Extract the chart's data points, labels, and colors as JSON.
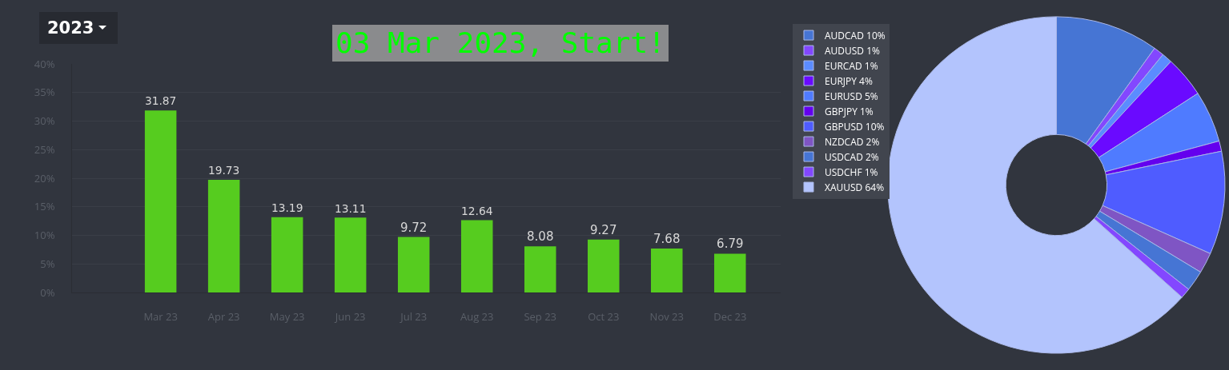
{
  "chart_data": [
    {
      "type": "bar",
      "title": "03 Mar 2023, Start!",
      "annotations": [
        "2023"
      ],
      "categories": [
        "Mar 23",
        "Apr 23",
        "May 23",
        "Jun 23",
        "Jul 23",
        "Aug 23",
        "Sep 23",
        "Oct 23",
        "Nov 23",
        "Dec 23"
      ],
      "values": [
        31.87,
        19.73,
        13.19,
        13.11,
        9.72,
        12.64,
        8.08,
        9.27,
        7.68,
        6.79
      ],
      "color": "#56cc1f",
      "data_labels": true,
      "ylim": [
        0,
        40
      ],
      "yticks": [
        {
          "value": 0,
          "label": "0%"
        },
        {
          "value": 5,
          "label": "5%"
        },
        {
          "value": 10,
          "label": "10%"
        },
        {
          "value": 15,
          "label": "15%"
        },
        {
          "value": 20,
          "label": "20%"
        },
        {
          "value": 25,
          "label": "25%"
        },
        {
          "value": 30,
          "label": "30%"
        },
        {
          "value": 35,
          "label": "35%"
        },
        {
          "value": 40,
          "label": "40%"
        }
      ],
      "grid": "y",
      "legend": false
    },
    {
      "type": "donut",
      "categories": [
        "AUDCAD 10%",
        "AUDUSD 1%",
        "EURCAD 1%",
        "EURJPY 4%",
        "EURUSD 5%",
        "GBPJPY 1%",
        "GBPUSD 10%",
        "NZDCAD 2%",
        "USDCAD 2%",
        "USDCHF 1%",
        "XAUUSD 64%"
      ],
      "values": [
        10,
        1,
        1,
        4,
        5,
        1,
        10,
        2,
        2,
        1,
        64
      ],
      "colors": [
        "#4675d4",
        "#8347ff",
        "#5b8cff",
        "#6a0aff",
        "#4f7bff",
        "#6400ee",
        "#4f5cff",
        "#7f55c4",
        "#4675d4",
        "#8347ff",
        "#b3c4fd"
      ],
      "legend": "left"
    }
  ]
}
